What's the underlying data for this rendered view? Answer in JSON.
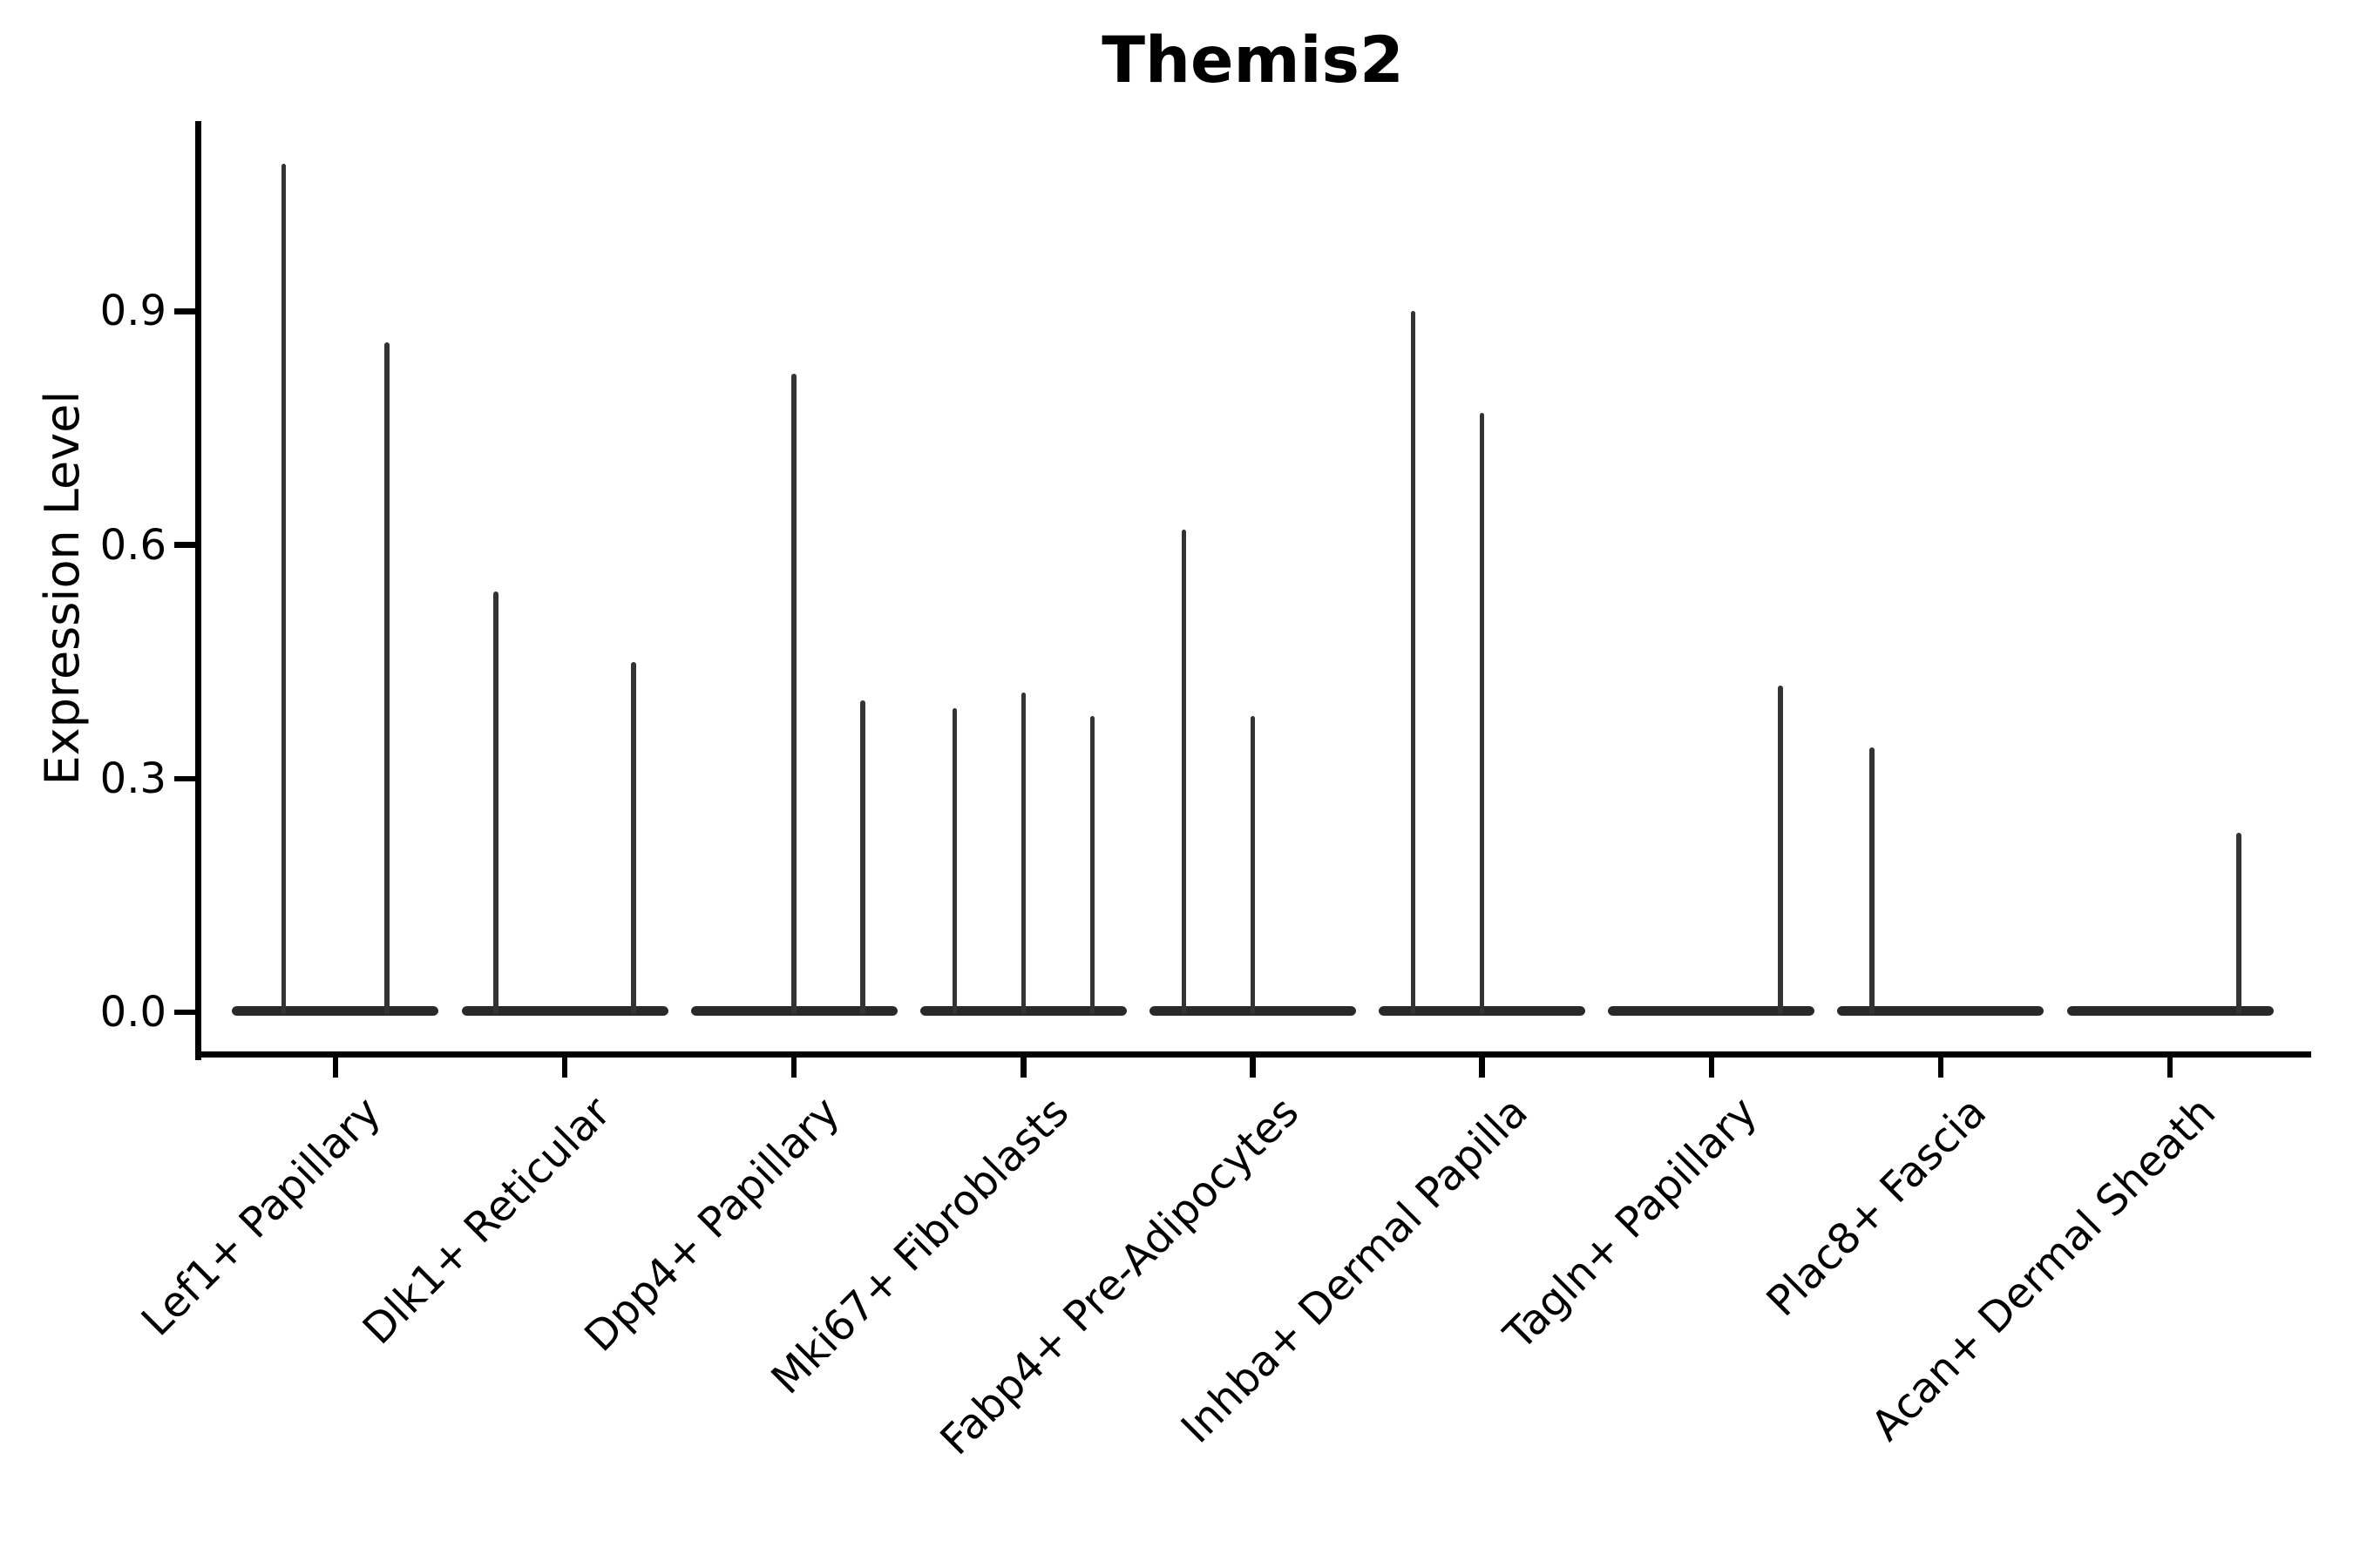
{
  "title": "Themis2",
  "y_axis": {
    "label": "Expression Level",
    "tick_labels": [
      "0.0",
      "0.3",
      "0.6",
      "0.9"
    ]
  },
  "colors": {
    "background": "#ffffff",
    "axis": "#000000",
    "violin_outline": "#333333",
    "violin_base": "#292929",
    "text": "#000000"
  },
  "chart_data": {
    "type": "violin",
    "title": "Themis2",
    "xlabel": "",
    "ylabel": "Expression Level",
    "ylim": [
      -0.055,
      1.145
    ],
    "yticks": [
      0.0,
      0.3,
      0.6,
      0.9
    ],
    "ytick_labels": [
      "0.0",
      "0.3",
      "0.6",
      "0.9"
    ],
    "grid": false,
    "legend": "none",
    "x_label_rotation_deg": 45,
    "categories": [
      "Lef1+ Papillary",
      "Dlk1+ Reticular",
      "Dpp4+ Papillary",
      "Mki67+ Fibroblasts",
      "Fabp4+ Pre-Adipocytes",
      "Inhba+ Dermal Papilla",
      "Tagln+ Papillary",
      "Plac8+ Fascia",
      "Acan+ Dermal Sheath"
    ],
    "base_band": {
      "value": 0.0,
      "width_fraction_of_category": 0.9,
      "note": "dense mass of zero-expression cells rendered as a flat wide violin base at y=0 for every category"
    },
    "violins": [
      {
        "category": "Lef1+ Papillary",
        "needles": [
          {
            "offset": -0.225,
            "peak": 1.09
          },
          {
            "offset": 0.225,
            "peak": 0.86
          }
        ]
      },
      {
        "category": "Dlk1+ Reticular",
        "needles": [
          {
            "offset": -0.3,
            "peak": 0.54
          },
          {
            "offset": 0.3,
            "peak": 0.45
          }
        ]
      },
      {
        "category": "Dpp4+ Papillary",
        "needles": [
          {
            "offset": 0.0,
            "peak": 0.82
          },
          {
            "offset": 0.3,
            "peak": 0.4
          }
        ]
      },
      {
        "category": "Mki67+ Fibroblasts",
        "needles": [
          {
            "offset": -0.3,
            "peak": 0.39
          },
          {
            "offset": 0.0,
            "peak": 0.41
          },
          {
            "offset": 0.3,
            "peak": 0.38
          }
        ]
      },
      {
        "category": "Fabp4+ Pre-Adipocytes",
        "needles": [
          {
            "offset": -0.3,
            "peak": 0.62
          },
          {
            "offset": 0.0,
            "peak": 0.38
          }
        ]
      },
      {
        "category": "Inhba+ Dermal Papilla",
        "needles": [
          {
            "offset": -0.3,
            "peak": 0.9
          },
          {
            "offset": 0.0,
            "peak": 0.77
          }
        ]
      },
      {
        "category": "Tagln+ Papillary",
        "needles": [
          {
            "offset": 0.3,
            "peak": 0.42
          }
        ]
      },
      {
        "category": "Plac8+ Fascia",
        "needles": [
          {
            "offset": -0.3,
            "peak": 0.34
          }
        ]
      },
      {
        "category": "Acan+ Dermal Sheath",
        "needles": [
          {
            "offset": 0.3,
            "peak": 0.23
          }
        ]
      }
    ]
  }
}
